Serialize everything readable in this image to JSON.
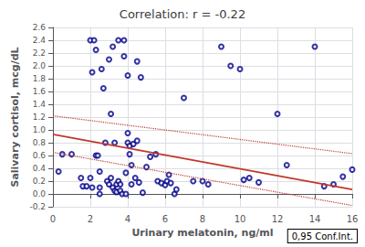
{
  "chart_data": {
    "type": "scatter",
    "title": "Correlation: r = -0.22",
    "xlabel": "Urinary melatonin, ng/ml",
    "ylabel": "Salivary cortisol, mcg/dL",
    "xlim": [
      0,
      16
    ],
    "ylim": [
      -0.2,
      2.6
    ],
    "xticks": [
      0,
      2,
      4,
      6,
      8,
      10,
      12,
      14,
      16
    ],
    "yticks": [
      -0.2,
      {
        "value": 0.0,
        "label": "0.0"
      },
      0.2,
      0.4,
      0.6,
      0.8,
      {
        "value": 1.0,
        "label": "1.0"
      },
      1.2,
      1.4,
      1.6,
      1.8,
      {
        "value": 2.0,
        "label": "2.0"
      },
      2.2,
      2.4,
      2.6
    ],
    "grid": true,
    "annotation": "0,95 Conf.Int.",
    "series": [
      {
        "type": "scatter",
        "color": "#00008B",
        "marker": "open_circle",
        "x": [
          0.3,
          0.5,
          1.0,
          1.5,
          1.6,
          1.8,
          2.0,
          2.0,
          2.1,
          2.1,
          2.2,
          2.3,
          2.3,
          2.4,
          2.5,
          2.5,
          2.5,
          2.6,
          2.7,
          2.8,
          2.9,
          3.0,
          3.0,
          3.1,
          3.1,
          3.2,
          3.2,
          3.3,
          3.3,
          3.4,
          3.4,
          3.5,
          3.5,
          3.6,
          3.6,
          3.7,
          3.8,
          3.8,
          3.9,
          3.9,
          4.0,
          4.0,
          4.0,
          4.1,
          4.1,
          4.2,
          4.2,
          4.3,
          4.4,
          4.5,
          4.5,
          4.6,
          4.7,
          4.8,
          5.0,
          5.2,
          5.5,
          5.6,
          5.8,
          6.0,
          6.1,
          6.2,
          6.3,
          6.5,
          6.6,
          7.0,
          7.5,
          8.0,
          8.3,
          9.0,
          9.5,
          10.0,
          10.2,
          10.5,
          11.0,
          12.0,
          12.5,
          14.0,
          14.5,
          15.0,
          15.5,
          16.0
        ],
        "values": [
          0.35,
          0.62,
          0.62,
          0.25,
          0.12,
          0.12,
          2.4,
          0.25,
          1.9,
          0.1,
          2.4,
          2.25,
          0.6,
          0.6,
          0.35,
          0.1,
          0.0,
          1.95,
          1.65,
          0.8,
          0.2,
          2.1,
          0.15,
          1.25,
          0.25,
          2.3,
          0.1,
          0.8,
          0.05,
          0.15,
          0.03,
          2.4,
          0.2,
          0.15,
          0.05,
          0.0,
          2.4,
          2.15,
          0.33,
          0.0,
          1.85,
          0.8,
          0.95,
          0.62,
          0.75,
          0.45,
          0.15,
          0.78,
          0.25,
          2.07,
          0.83,
          0.18,
          1.82,
          0.02,
          0.42,
          0.58,
          0.62,
          0.2,
          0.17,
          0.14,
          0.2,
          0.3,
          0.17,
          0.0,
          0.07,
          1.5,
          0.2,
          0.2,
          0.15,
          2.3,
          2.0,
          1.95,
          0.22,
          0.25,
          0.18,
          1.25,
          0.45,
          2.3,
          0.12,
          0.15,
          0.27,
          0.38
        ]
      },
      {
        "type": "line",
        "color": "#c0392b",
        "line_style": "solid",
        "x": [
          0,
          16
        ],
        "values": [
          0.93,
          0.07
        ]
      },
      {
        "type": "line",
        "color": "#c0392b",
        "line_style": "dotted",
        "x": [
          0,
          16
        ],
        "values": [
          1.22,
          0.63
        ]
      },
      {
        "type": "line",
        "color": "#c0392b",
        "line_style": "dotted",
        "x": [
          0,
          16
        ],
        "values": [
          0.65,
          -0.18
        ]
      }
    ]
  }
}
